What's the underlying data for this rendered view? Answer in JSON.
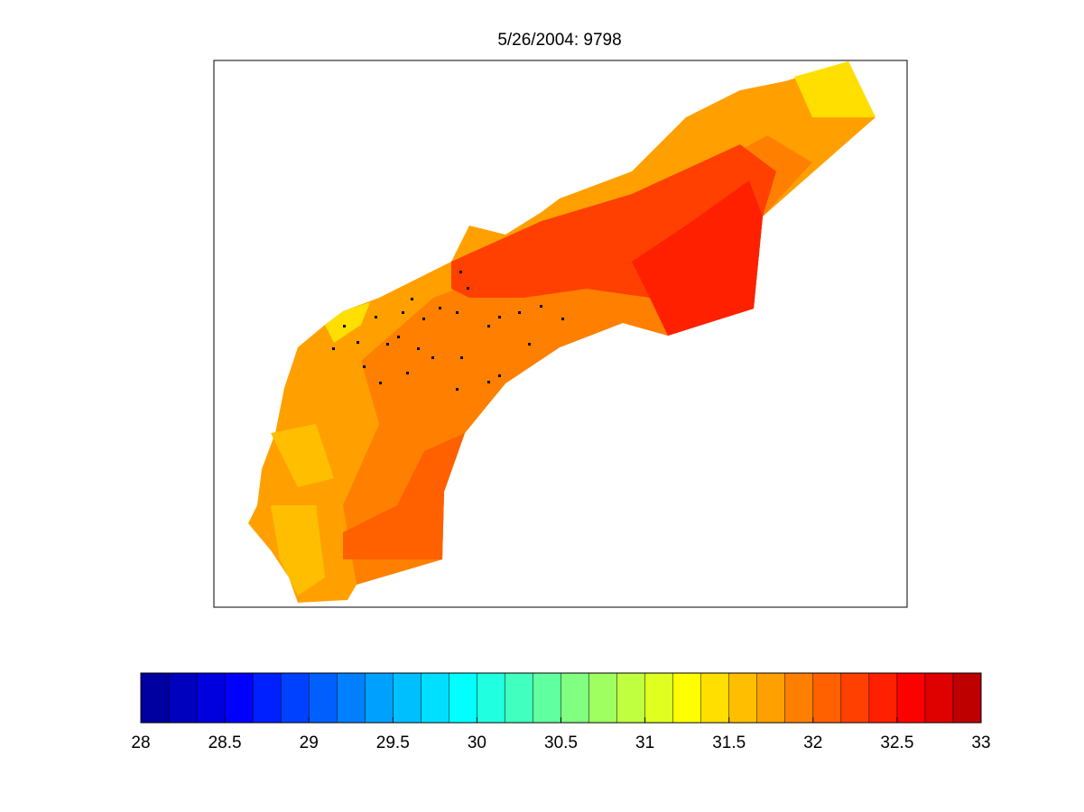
{
  "title": "5/26/2004: 9798",
  "colorbar": {
    "lim": [
      28,
      33
    ],
    "ticks": [
      28,
      28.5,
      29,
      29.5,
      30,
      30.5,
      31,
      31.5,
      32,
      32.5,
      33
    ],
    "colors": [
      "#0000A0",
      "#0000BF",
      "#0000DF",
      "#0000FF",
      "#0020FF",
      "#0040FF",
      "#0060FF",
      "#0080FF",
      "#00A0FF",
      "#00BFFF",
      "#00DFFF",
      "#00FFFF",
      "#20FFDF",
      "#40FFBF",
      "#60FFA0",
      "#80FF80",
      "#A0FF60",
      "#BFFF40",
      "#DFFF20",
      "#FFFF00",
      "#FFDF00",
      "#FFBF00",
      "#FFA000",
      "#FF8000",
      "#FF6000",
      "#FF4000",
      "#FF2000",
      "#FF0000",
      "#DF0000",
      "#BF0000"
    ]
  }
}
